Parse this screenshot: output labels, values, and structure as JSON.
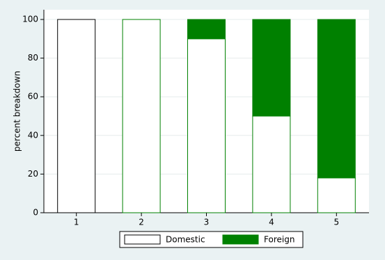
{
  "chart_data": {
    "type": "stacked-bar",
    "y_label": "percent breakdown",
    "categories": [
      "1",
      "2",
      "3",
      "4",
      "5"
    ],
    "series": [
      {
        "name": "Domestic",
        "color": "#ffffff",
        "values": [
          100,
          100,
          90,
          50,
          18
        ]
      },
      {
        "name": "Foreign",
        "color": "#008000",
        "values": [
          0,
          0,
          10,
          50,
          82
        ]
      }
    ],
    "ylim": [
      0,
      100
    ],
    "yticks": [
      0,
      20,
      40,
      60,
      80,
      100
    ],
    "grid": true
  }
}
